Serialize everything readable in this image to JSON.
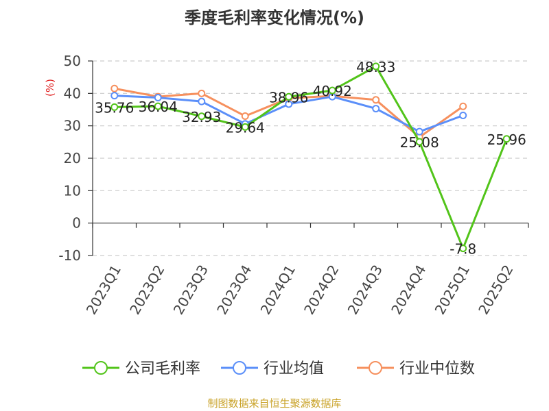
{
  "title": "季度毛利率变化情况(%)",
  "source": "制图数据来自恒生聚源数据库",
  "chart_data": {
    "type": "line",
    "categories": [
      "2023Q1",
      "2023Q2",
      "2023Q3",
      "2023Q4",
      "2024Q1",
      "2024Q2",
      "2024Q3",
      "2024Q4",
      "2025Q1",
      "2025Q2"
    ],
    "ylabel": "(%)",
    "ylim": [
      -10,
      50
    ],
    "yticks": [
      -10,
      0,
      10,
      20,
      30,
      40,
      50
    ],
    "grid": true,
    "legend_position": "bottom",
    "series": [
      {
        "name": "公司毛利率",
        "color": "#52c41a",
        "values": [
          35.76,
          36.04,
          32.93,
          29.64,
          38.96,
          40.92,
          48.33,
          25.08,
          -7.8,
          25.96
        ],
        "labels": [
          "35.76",
          "36.04",
          "32.93",
          "29.64",
          "38.96",
          "40.92",
          "48.33",
          "25.08",
          "-7.8",
          "25.96"
        ]
      },
      {
        "name": "行业均值",
        "color": "#5b8ff9",
        "values": [
          39.3,
          38.7,
          37.5,
          30.6,
          36.7,
          39.0,
          35.3,
          28.2,
          33.2,
          null
        ]
      },
      {
        "name": "行业中位数",
        "color": "#f6905e",
        "values": [
          41.5,
          39.0,
          40.0,
          33.0,
          38.5,
          39.2,
          38.0,
          26.5,
          36.0,
          null
        ]
      }
    ]
  }
}
